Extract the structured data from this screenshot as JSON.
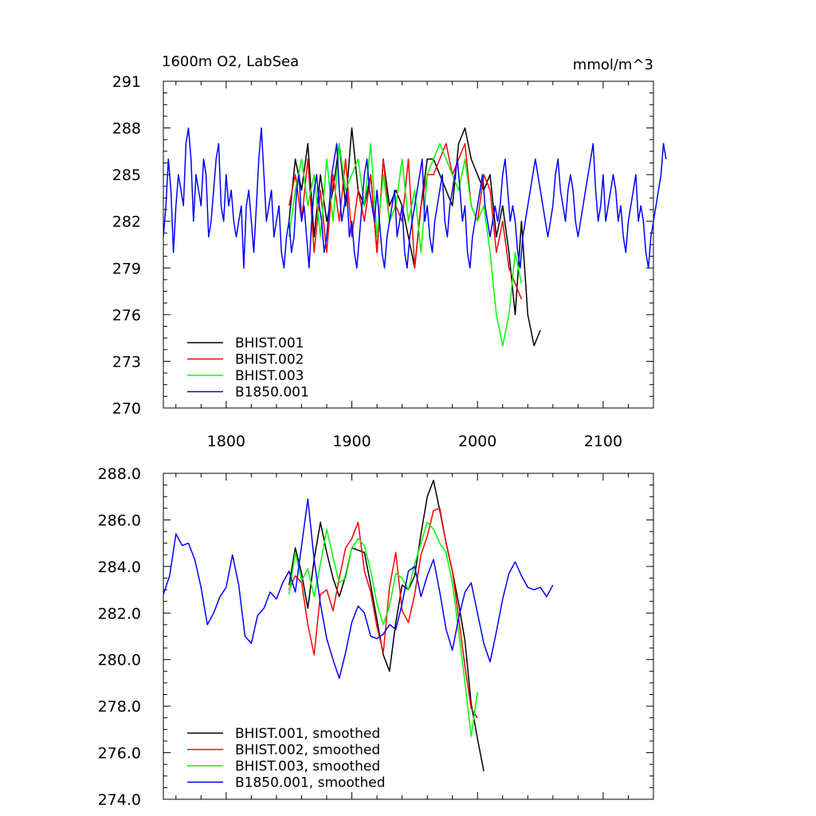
{
  "chart_data": [
    {
      "type": "line",
      "title": "1600m O2, LabSea",
      "units": "mmol/m^3",
      "xlim": [
        1750,
        2140
      ],
      "ylim": [
        270,
        291
      ],
      "xticks": [
        1800,
        1900,
        2000,
        2100
      ],
      "xtick_labels": [
        "1800",
        "1900",
        "2000",
        "2100"
      ],
      "yticks": [
        270,
        273,
        276,
        279,
        282,
        285,
        288,
        291
      ],
      "ytick_labels": [
        "270",
        "273",
        "276",
        "279",
        "282",
        "285",
        "288",
        "291"
      ],
      "legend_position": "bottom-left",
      "series": [
        {
          "name": "BHIST.001",
          "color": "#000000",
          "x0": 1850,
          "step": 5,
          "values": [
            282,
            286,
            284,
            287,
            281,
            285,
            282,
            284,
            287,
            283,
            288,
            284,
            283,
            285,
            280,
            286,
            283,
            284,
            283,
            281,
            279,
            283,
            286,
            286,
            285,
            284,
            283,
            287,
            288,
            286,
            285,
            284,
            285,
            281,
            283,
            280,
            276,
            282,
            276,
            274,
            275
          ]
        },
        {
          "name": "BHIST.002",
          "color": "#ff0000",
          "x0": 1850,
          "step": 5,
          "values": [
            283,
            285,
            282,
            286,
            280,
            284,
            280,
            285,
            282,
            286,
            281,
            284,
            282,
            285,
            280,
            286,
            282,
            283,
            282,
            286,
            279,
            283,
            285,
            285,
            286,
            287,
            285,
            286,
            287,
            283,
            282,
            285,
            284,
            280,
            282,
            279,
            278,
            277
          ]
        },
        {
          "name": "BHIST.003",
          "color": "#00ff00",
          "x0": 1850,
          "step": 5,
          "values": [
            281,
            284,
            286,
            283,
            285,
            281,
            286,
            282,
            287,
            284,
            285,
            286,
            283,
            287,
            281,
            285,
            282,
            283,
            286,
            282,
            284,
            280,
            285,
            286,
            287,
            286,
            285,
            284,
            286,
            283,
            282,
            283,
            280,
            276,
            274,
            276,
            280,
            278
          ]
        },
        {
          "name": "B1850.001",
          "color": "#0000ff",
          "x0": 1750,
          "step": 2,
          "values": [
            281,
            283,
            286,
            284,
            280,
            283,
            285,
            284,
            283,
            287,
            288,
            286,
            282,
            285,
            284,
            283,
            286,
            285,
            281,
            282,
            284,
            286,
            287,
            283,
            282,
            285,
            283,
            284,
            282,
            281,
            282,
            283,
            279,
            283,
            284,
            282,
            280,
            283,
            286,
            288,
            285,
            282,
            283,
            284,
            281,
            282,
            283,
            280,
            279,
            281,
            282,
            280,
            281,
            284,
            285,
            282,
            283,
            281,
            279,
            282,
            284,
            285,
            283,
            282,
            280,
            281,
            283,
            285,
            286,
            287,
            284,
            282,
            283,
            284,
            281,
            282,
            280,
            279,
            281,
            283,
            285,
            286,
            284,
            283,
            282,
            284,
            282,
            280,
            279,
            281,
            282,
            283,
            284,
            281,
            282,
            283,
            280,
            279,
            281,
            282,
            283,
            284,
            285,
            286,
            282,
            283,
            281,
            280,
            282,
            283,
            284,
            285,
            282,
            281,
            283,
            284,
            285,
            286,
            284,
            282,
            283,
            280,
            279,
            281,
            282,
            283,
            284,
            285,
            283,
            282,
            281,
            282,
            283,
            282,
            283,
            285,
            286,
            284,
            282,
            283,
            282,
            280,
            279,
            281,
            282,
            283,
            284,
            285,
            286,
            285,
            284,
            283,
            282,
            281,
            282,
            283,
            285,
            286,
            284,
            283,
            282,
            284,
            285,
            284,
            282,
            281,
            282,
            283,
            284,
            285,
            286,
            287,
            284,
            282,
            283,
            285,
            282,
            283,
            284,
            285,
            284,
            282,
            283,
            281,
            280,
            282,
            283,
            284,
            285,
            282,
            283,
            282,
            280,
            279,
            281,
            282,
            283,
            284,
            285,
            287,
            286
          ]
        }
      ]
    },
    {
      "type": "line",
      "title": "",
      "units": "",
      "xlim": [
        1750,
        2140
      ],
      "ylim": [
        274,
        288
      ],
      "xticks": [
        1800,
        1900,
        2000,
        2100
      ],
      "xtick_labels": [
        "1800",
        "1900",
        "2000",
        "2100"
      ],
      "yticks": [
        274,
        276,
        278,
        280,
        282,
        284,
        286,
        288
      ],
      "ytick_labels": [
        "274.0",
        "276.0",
        "278.0",
        "280.0",
        "282.0",
        "284.0",
        "286.0",
        "288.0"
      ],
      "legend_position": "bottom-left",
      "series": [
        {
          "name": "BHIST.001, smoothed",
          "color": "#000000",
          "x0": 1850,
          "step": 5,
          "values": [
            283.2,
            284.8,
            283.7,
            282.2,
            284.3,
            285.9,
            284.6,
            283.5,
            282.7,
            283.6,
            284.8,
            284.7,
            284.6,
            283.2,
            281.7,
            280.2,
            279.5,
            281.6,
            283.2,
            283.0,
            283.6,
            285.4,
            287.0,
            287.7,
            286.4,
            285.0,
            283.8,
            282.4,
            280.8,
            278.1,
            276.6,
            275.2
          ]
        },
        {
          "name": "BHIST.002, smoothed",
          "color": "#ff0000",
          "x0": 1850,
          "step": 5,
          "values": [
            283.0,
            283.6,
            283.3,
            281.5,
            280.2,
            282.8,
            283.0,
            282.1,
            283.5,
            284.8,
            285.2,
            285.9,
            283.8,
            282.9,
            281.4,
            280.3,
            283.1,
            284.6,
            282.1,
            281.6,
            282.8,
            284.5,
            285.3,
            286.4,
            286.5,
            285.0,
            283.8,
            281.8,
            279.7,
            277.9,
            277.5
          ]
        },
        {
          "name": "BHIST.003, smoothed",
          "color": "#00ff00",
          "x0": 1850,
          "step": 5,
          "values": [
            282.8,
            284.6,
            283.4,
            283.9,
            282.7,
            284.1,
            285.6,
            284.4,
            283.3,
            283.5,
            284.8,
            285.2,
            284.9,
            283.8,
            282.4,
            281.5,
            282.3,
            283.7,
            283.5,
            283.0,
            284.1,
            285.0,
            285.9,
            285.6,
            285.0,
            284.6,
            283.3,
            281.2,
            279.0,
            276.7,
            278.6
          ]
        },
        {
          "name": "B1850.001, smoothed",
          "color": "#0000ff",
          "x0": 1750,
          "step": 5,
          "values": [
            282.8,
            283.6,
            285.4,
            284.9,
            285.0,
            284.3,
            283.1,
            281.5,
            282.0,
            282.7,
            283.1,
            284.5,
            283.2,
            281.0,
            280.7,
            281.9,
            282.2,
            282.9,
            282.6,
            283.3,
            283.8,
            282.9,
            284.9,
            286.9,
            284.3,
            282.4,
            280.9,
            280.0,
            279.2,
            280.3,
            281.6,
            282.3,
            282.0,
            281.0,
            280.9,
            281.1,
            281.5,
            281.3,
            282.4,
            283.8,
            284.0,
            282.7,
            283.6,
            284.3,
            282.9,
            281.3,
            280.4,
            281.8,
            282.9,
            283.3,
            282.0,
            280.7,
            279.9,
            281.2,
            282.6,
            283.7,
            284.2,
            283.6,
            283.1,
            283.0,
            283.1,
            282.7,
            283.2
          ]
        }
      ]
    }
  ]
}
